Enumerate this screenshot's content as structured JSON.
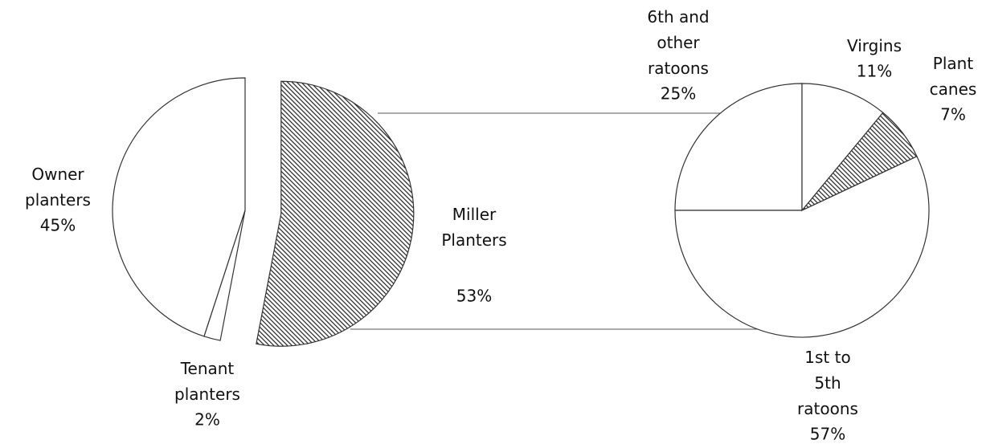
{
  "chart_data": [
    {
      "type": "pie",
      "labels": [
        "Owner\nplanters",
        "Tenant\nplanters",
        "Miller\nPlanters"
      ],
      "values": [
        45,
        2,
        53
      ],
      "value_labels": [
        "45%",
        "2%",
        "53%"
      ],
      "colors": [
        "#ffffff",
        "#ffffff",
        "#ffffff"
      ],
      "hatched": [
        false,
        false,
        true
      ],
      "exploded": [
        false,
        false,
        true
      ]
    },
    {
      "type": "pie",
      "labels": [
        "6th and\nother\nratoons",
        "1st to\n5th\nratoons",
        "Plant\ncanes",
        "Virgins"
      ],
      "values": [
        25,
        57,
        7,
        11
      ],
      "value_labels": [
        "25%",
        "57%",
        "7%",
        "11%"
      ],
      "colors": [
        "#ffffff",
        "#ffffff",
        "#ffffff",
        "#ffffff"
      ],
      "hatched": [
        false,
        false,
        true,
        false
      ],
      "exploded": [
        false,
        false,
        false,
        false
      ]
    }
  ]
}
